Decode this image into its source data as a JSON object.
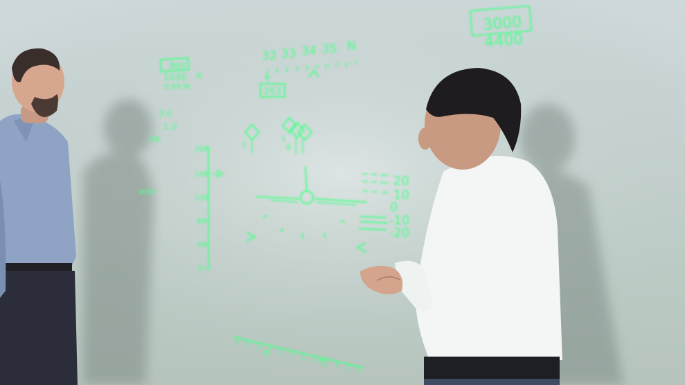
{
  "hud": {
    "color": "#4dff8c",
    "altitude_box": {
      "top": "3000",
      "bottom": "4400"
    },
    "heading_labels": [
      "32",
      "33",
      "34",
      "35",
      "N"
    ],
    "heading_readout": "263",
    "top_left_box": "860",
    "top_left_row1": "1030",
    "top_left_row1_suffix": "И",
    "top_left_row2": "0.89 M",
    "left_small_1": "3.0",
    "left_small_2": "1.0",
    "left_small_3": "ПФ",
    "left_small_4": "ИЗЛ",
    "speed_scale": [
      "200",
      "160",
      "120",
      "80",
      "40",
      "0"
    ],
    "pitch_scale": [
      "20",
      "10",
      "0",
      "-10",
      "-20"
    ],
    "waypoint_labels": [
      "2",
      "1",
      "8"
    ]
  }
}
